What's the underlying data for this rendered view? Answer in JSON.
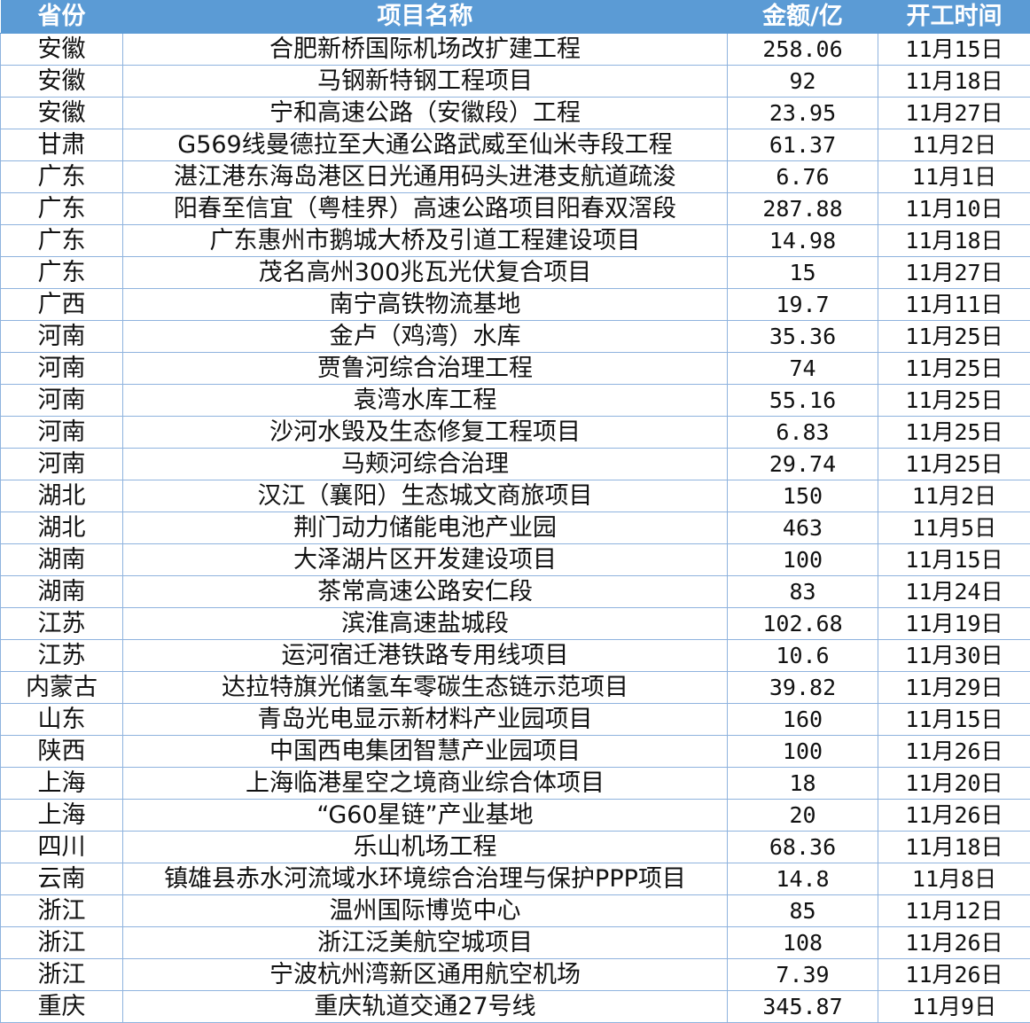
{
  "colors": {
    "header_bg": "#5b9bd5",
    "header_text": "#ffffff",
    "grid": "#8fb3de"
  },
  "headers": [
    "省份",
    "项目名称",
    "金额/亿",
    "开工时间"
  ],
  "rows": [
    [
      "安徽",
      "合肥新桥国际机场改扩建工程",
      "258.06",
      "11月15日"
    ],
    [
      "安徽",
      "马钢新特钢工程项目",
      "92",
      "11月18日"
    ],
    [
      "安徽",
      "宁和高速公路（安徽段）工程",
      "23.95",
      "11月27日"
    ],
    [
      "甘肃",
      "G569线曼德拉至大通公路武威至仙米寺段工程",
      "61.37",
      "11月2日"
    ],
    [
      "广东",
      "湛江港东海岛港区日光通用码头进港支航道疏浚",
      "6.76",
      "11月1日"
    ],
    [
      "广东",
      "阳春至信宜（粤桂界）高速公路项目阳春双滘段",
      "287.88",
      "11月10日"
    ],
    [
      "广东",
      "广东惠州市鹅城大桥及引道工程建设项目",
      "14.98",
      "11月18日"
    ],
    [
      "广东",
      "茂名高州300兆瓦光伏复合项目",
      "15",
      "11月27日"
    ],
    [
      "广西",
      "南宁高铁物流基地",
      "19.7",
      "11月11日"
    ],
    [
      "河南",
      "金卢（鸡湾）水库",
      "35.36",
      "11月25日"
    ],
    [
      "河南",
      "贾鲁河综合治理工程",
      "74",
      "11月25日"
    ],
    [
      "河南",
      "袁湾水库工程",
      "55.16",
      "11月25日"
    ],
    [
      "河南",
      "沙河水毁及生态修复工程项目",
      "6.83",
      "11月25日"
    ],
    [
      "河南",
      "马颊河综合治理",
      "29.74",
      "11月25日"
    ],
    [
      "湖北",
      "汉江（襄阳）生态城文商旅项目",
      "150",
      "11月2日"
    ],
    [
      "湖北",
      "荆门动力储能电池产业园",
      "463",
      "11月5日"
    ],
    [
      "湖南",
      "大泽湖片区开发建设项目",
      "100",
      "11月15日"
    ],
    [
      "湖南",
      "茶常高速公路安仁段",
      "83",
      "11月24日"
    ],
    [
      "江苏",
      "滨淮高速盐城段",
      "102.68",
      "11月19日"
    ],
    [
      "江苏",
      "运河宿迁港铁路专用线项目",
      "10.6",
      "11月30日"
    ],
    [
      "内蒙古",
      "达拉特旗光储氢车零碳生态链示范项目",
      "39.82",
      "11月29日"
    ],
    [
      "山东",
      "青岛光电显示新材料产业园项目",
      "160",
      "11月15日"
    ],
    [
      "陕西",
      "中国西电集团智慧产业园项目",
      "100",
      "11月26日"
    ],
    [
      "上海",
      "上海临港星空之境商业综合体项目",
      "18",
      "11月20日"
    ],
    [
      "上海",
      "“G60星链”产业基地",
      "20",
      "11月26日"
    ],
    [
      "四川",
      "乐山机场工程",
      "68.36",
      "11月18日"
    ],
    [
      "云南",
      "镇雄县赤水河流域水环境综合治理与保护PPP项目",
      "14.8",
      "11月8日"
    ],
    [
      "浙江",
      "温州国际博览中心",
      "85",
      "11月12日"
    ],
    [
      "浙江",
      "浙江泛美航空城项目",
      "108",
      "11月26日"
    ],
    [
      "浙江",
      "宁波杭州湾新区通用航空机场",
      "7.39",
      "11月26日"
    ],
    [
      "重庆",
      "重庆轨道交通27号线",
      "345.87",
      "11月9日"
    ]
  ]
}
